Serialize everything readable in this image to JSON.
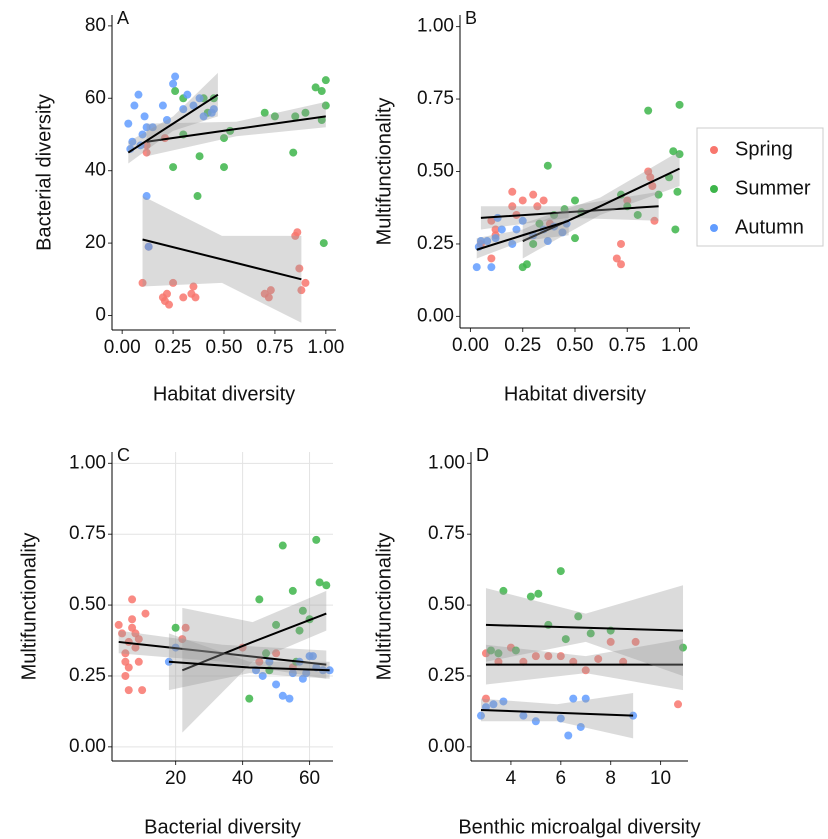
{
  "chart_data": [
    {
      "type": "scatter",
      "label": "A",
      "x_label": "Habitat diversity",
      "y_label": "Bacterial diversity",
      "xlim": [
        -0.05,
        1.05
      ],
      "ylim": [
        -4,
        83
      ],
      "xticks": [
        {
          "value": 0,
          "label": "0.00"
        },
        0.25,
        {
          "value": 0.5,
          "label": "0.50"
        },
        0.75,
        {
          "value": 1,
          "label": "1.00"
        }
      ],
      "yticks": [
        0,
        20,
        40,
        60,
        80
      ],
      "grid": false,
      "series": [
        {
          "name": "Spring",
          "color": "#F8766D",
          "x": [
            0.1,
            0.12,
            0.13,
            0.2,
            0.21,
            0.22,
            0.23,
            0.25,
            0.3,
            0.34,
            0.35,
            0.36,
            0.7,
            0.72,
            0.73,
            0.85,
            0.86,
            0.87,
            0.88,
            0.9,
            0.12,
            0.21
          ],
          "values": [
            9,
            45,
            19,
            5,
            4,
            6,
            3,
            9,
            5,
            6,
            8,
            5,
            6,
            5,
            7,
            22,
            23,
            13,
            7,
            9,
            47,
            49
          ],
          "fit": {
            "x": [
              0.1,
              0.49,
              0.88
            ],
            "values": [
              21,
              15.5,
              10
            ],
            "lower": [
              8,
              9,
              -2
            ],
            "upper": [
              33,
              22,
              22
            ]
          }
        },
        {
          "name": "Summer",
          "color": "#3DB54A",
          "x": [
            0.25,
            0.26,
            0.3,
            0.38,
            0.37,
            0.4,
            0.42,
            0.45,
            0.5,
            0.5,
            0.53,
            0.7,
            0.75,
            0.84,
            0.85,
            0.9,
            0.95,
            0.98,
            0.99,
            1.0,
            1.0,
            0.98,
            0.3
          ],
          "values": [
            41,
            62,
            60,
            44,
            33,
            60,
            56,
            60,
            41,
            49,
            51,
            56,
            55,
            45,
            55,
            56,
            63,
            62,
            20,
            65,
            58,
            54,
            50
          ],
          "fit": {
            "x": [
              0.12,
              0.56,
              1.0
            ],
            "values": [
              48,
              51.5,
              55
            ],
            "lower": [
              44,
              49.5,
              52
            ],
            "upper": [
              53,
              53.5,
              59
            ]
          }
        },
        {
          "name": "Autumn",
          "color": "#619CFF",
          "x": [
            0.03,
            0.04,
            0.05,
            0.06,
            0.08,
            0.1,
            0.11,
            0.12,
            0.12,
            0.13,
            0.2,
            0.22,
            0.25,
            0.26,
            0.3,
            0.32,
            0.35,
            0.38,
            0.4,
            0.44,
            0.45,
            0.15,
            0.09
          ],
          "values": [
            53,
            46,
            48,
            58,
            61,
            50,
            55,
            52,
            33,
            19,
            58,
            54,
            64,
            66,
            57,
            61,
            58,
            60,
            55,
            56,
            57,
            52,
            47
          ],
          "fit": {
            "x": [
              0.03,
              0.25,
              0.47
            ],
            "values": [
              45,
              53,
              61
            ],
            "lower": [
              42,
              51,
              55
            ],
            "upper": [
              48,
              55,
              67
            ]
          }
        }
      ]
    },
    {
      "type": "scatter",
      "label": "B",
      "x_label": "Habitat diversity",
      "y_label": "Multifunctionality",
      "xlim": [
        -0.05,
        1.05
      ],
      "ylim": [
        -0.04,
        1.04
      ],
      "xticks": [
        {
          "value": 0,
          "label": "0.00"
        },
        0.25,
        {
          "value": 0.5,
          "label": "0.50"
        },
        0.75,
        {
          "value": 1,
          "label": "1.00"
        }
      ],
      "yticks": [
        {
          "value": 0,
          "label": "0.00"
        },
        0.25,
        {
          "value": 0.5,
          "label": "0.50"
        },
        0.75,
        {
          "value": 1,
          "label": "1.00"
        }
      ],
      "grid": false,
      "legend": "right",
      "series": [
        {
          "name": "Spring",
          "color": "#F8766D",
          "x": [
            0.1,
            0.1,
            0.12,
            0.2,
            0.2,
            0.22,
            0.25,
            0.3,
            0.32,
            0.35,
            0.38,
            0.7,
            0.72,
            0.72,
            0.75,
            0.85,
            0.86,
            0.87,
            0.88,
            0.05,
            0.12
          ],
          "values": [
            0.33,
            0.2,
            0.3,
            0.43,
            0.38,
            0.35,
            0.4,
            0.42,
            0.38,
            0.4,
            0.32,
            0.2,
            0.25,
            0.18,
            0.4,
            0.5,
            0.48,
            0.45,
            0.33,
            0.25,
            0.28
          ],
          "fit": {
            "x": [
              0.05,
              0.47,
              0.9
            ],
            "values": [
              0.34,
              0.36,
              0.38
            ],
            "lower": [
              0.3,
              0.34,
              0.33
            ],
            "upper": [
              0.38,
              0.38,
              0.43
            ]
          }
        },
        {
          "name": "Summer",
          "color": "#3DB54A",
          "x": [
            0.25,
            0.27,
            0.3,
            0.33,
            0.37,
            0.4,
            0.45,
            0.5,
            0.5,
            0.53,
            0.72,
            0.75,
            0.8,
            0.85,
            0.9,
            0.97,
            0.98,
            0.99,
            1.0,
            1.0,
            0.95
          ],
          "values": [
            0.17,
            0.18,
            0.25,
            0.32,
            0.52,
            0.35,
            0.37,
            0.27,
            0.4,
            0.36,
            0.42,
            0.38,
            0.35,
            0.71,
            0.42,
            0.57,
            0.3,
            0.43,
            0.73,
            0.56,
            0.48
          ],
          "fit": {
            "x": [
              0.25,
              0.62,
              1.0
            ],
            "values": [
              0.26,
              0.38,
              0.51
            ],
            "lower": [
              0.2,
              0.35,
              0.45
            ],
            "upper": [
              0.32,
              0.41,
              0.57
            ]
          }
        },
        {
          "name": "Autumn",
          "color": "#619CFF",
          "x": [
            0.03,
            0.04,
            0.05,
            0.1,
            0.12,
            0.13,
            0.15,
            0.2,
            0.22,
            0.25,
            0.3,
            0.35,
            0.37,
            0.4,
            0.44,
            0.46,
            0.08
          ],
          "values": [
            0.17,
            0.24,
            0.26,
            0.17,
            0.27,
            0.34,
            0.3,
            0.25,
            0.3,
            0.33,
            0.28,
            0.3,
            0.26,
            0.31,
            0.29,
            0.32,
            0.26
          ],
          "fit": {
            "x": [
              0.03,
              0.25,
              0.47
            ],
            "values": [
              0.23,
              0.28,
              0.33
            ],
            "lower": [
              0.2,
              0.26,
              0.28
            ],
            "upper": [
              0.27,
              0.3,
              0.37
            ]
          }
        }
      ]
    },
    {
      "type": "scatter",
      "label": "C",
      "x_label": "Bacterial diversity",
      "y_label": "Multifunctionality",
      "xlim": [
        1,
        67
      ],
      "ylim": [
        -0.05,
        1.04
      ],
      "xticks": [
        20,
        40,
        60
      ],
      "yticks": [
        {
          "value": 0,
          "label": "0.00"
        },
        0.25,
        {
          "value": 0.5,
          "label": "0.50"
        },
        0.75,
        {
          "value": 1,
          "label": "1.00"
        }
      ],
      "grid": true,
      "series": [
        {
          "name": "Spring",
          "color": "#F8766D",
          "x": [
            3,
            4,
            5,
            5,
            6,
            6,
            7,
            7,
            8,
            8,
            9,
            10,
            11,
            5,
            6,
            7,
            9,
            23,
            22,
            40,
            45,
            50,
            55
          ],
          "values": [
            0.43,
            0.4,
            0.3,
            0.25,
            0.2,
            0.37,
            0.45,
            0.52,
            0.4,
            0.35,
            0.3,
            0.2,
            0.47,
            0.33,
            0.28,
            0.42,
            0.38,
            0.42,
            0.38,
            0.35,
            0.3,
            0.33,
            0.28
          ],
          "fit": {
            "x": [
              3,
              34,
              65
            ],
            "values": [
              0.37,
              0.33,
              0.29
            ],
            "lower": [
              0.33,
              0.3,
              0.24
            ],
            "upper": [
              0.41,
              0.36,
              0.34
            ]
          }
        },
        {
          "name": "Summer",
          "color": "#3DB54A",
          "x": [
            20,
            42,
            45,
            47,
            52,
            55,
            57,
            58,
            60,
            62,
            63,
            65,
            48,
            56,
            50
          ],
          "values": [
            0.42,
            0.17,
            0.52,
            0.33,
            0.71,
            0.55,
            0.41,
            0.48,
            0.45,
            0.73,
            0.58,
            0.57,
            0.27,
            0.3,
            0.43
          ],
          "fit": {
            "x": [
              22,
              43,
              65
            ],
            "values": [
              0.27,
              0.37,
              0.47
            ],
            "lower": [
              0.05,
              0.3,
              0.41
            ],
            "upper": [
              0.49,
              0.44,
              0.55
            ]
          }
        },
        {
          "name": "Autumn",
          "color": "#619CFF",
          "x": [
            18,
            20,
            44,
            46,
            48,
            50,
            52,
            54,
            55,
            57,
            58,
            60,
            61,
            62,
            64,
            66,
            59
          ],
          "values": [
            0.3,
            0.35,
            0.27,
            0.25,
            0.3,
            0.22,
            0.18,
            0.17,
            0.26,
            0.3,
            0.24,
            0.32,
            0.32,
            0.28,
            0.27,
            0.27,
            0.26
          ],
          "fit": {
            "x": [
              18,
              42,
              66
            ],
            "values": [
              0.3,
              0.28,
              0.27
            ],
            "lower": [
              0.2,
              0.26,
              0.24
            ],
            "upper": [
              0.4,
              0.3,
              0.3
            ]
          }
        }
      ]
    },
    {
      "type": "scatter",
      "label": "D",
      "x_label": "Benthic microalgal diversity",
      "y_label": "Multifunctionality",
      "xlim": [
        2.4,
        11.1
      ],
      "ylim": [
        -0.05,
        1.04
      ],
      "xticks": [
        4,
        6,
        8,
        10
      ],
      "yticks": [
        {
          "value": 0,
          "label": "0.00"
        },
        0.25,
        {
          "value": 0.5,
          "label": "0.50"
        },
        0.75,
        {
          "value": 1,
          "label": "1.00"
        }
      ],
      "grid": false,
      "series": [
        {
          "name": "Spring",
          "color": "#F8766D",
          "x": [
            3,
            3.5,
            4,
            4.5,
            5,
            5.5,
            6,
            6.5,
            7,
            7.5,
            8,
            8.5,
            9,
            10.7,
            3
          ],
          "values": [
            0.33,
            0.3,
            0.35,
            0.3,
            0.32,
            0.32,
            0.32,
            0.3,
            0.27,
            0.31,
            0.37,
            0.3,
            0.37,
            0.15,
            0.17
          ],
          "fit": {
            "x": [
              3,
              7,
              10.9
            ],
            "values": [
              0.29,
              0.29,
              0.29
            ],
            "lower": [
              0.22,
              0.26,
              0.2
            ],
            "upper": [
              0.36,
              0.32,
              0.38
            ]
          }
        },
        {
          "name": "Summer",
          "color": "#3DB54A",
          "x": [
            3.2,
            3.5,
            3.7,
            4.2,
            4.8,
            5.1,
            5.5,
            6,
            6.2,
            6.7,
            7.2,
            8,
            10.9
          ],
          "values": [
            0.34,
            0.33,
            0.55,
            0.34,
            0.53,
            0.54,
            0.43,
            0.62,
            0.38,
            0.46,
            0.4,
            0.41,
            0.35
          ],
          "fit": {
            "x": [
              3,
              7,
              10.9
            ],
            "values": [
              0.43,
              0.42,
              0.41
            ],
            "lower": [
              0.3,
              0.37,
              0.25
            ],
            "upper": [
              0.56,
              0.47,
              0.57
            ]
          }
        },
        {
          "name": "Autumn",
          "color": "#619CFF",
          "x": [
            2.8,
            3,
            3.3,
            3.7,
            4.5,
            5,
            6,
            6.3,
            6.5,
            6.8,
            7,
            8.9
          ],
          "values": [
            0.11,
            0.14,
            0.15,
            0.16,
            0.11,
            0.09,
            0.1,
            0.04,
            0.17,
            0.07,
            0.17,
            0.11
          ],
          "fit": {
            "x": [
              2.8,
              5.85,
              8.9
            ],
            "values": [
              0.13,
              0.12,
              0.11
            ],
            "lower": [
              0.09,
              0.09,
              0.03
            ],
            "upper": [
              0.17,
              0.15,
              0.19
            ]
          }
        }
      ]
    }
  ]
}
